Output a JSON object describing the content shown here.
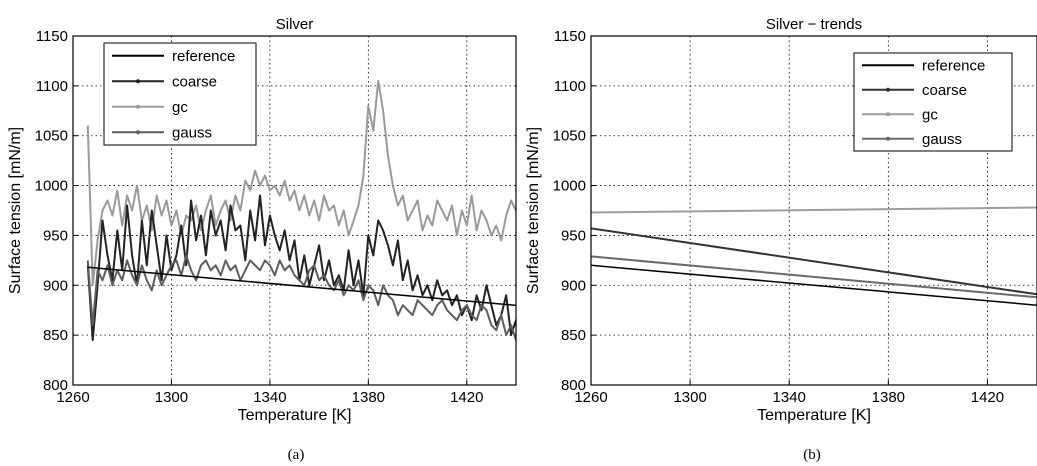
{
  "chart_data": [
    {
      "type": "line",
      "title": "Silver",
      "caption": "(a)",
      "xlabel": "Temperature [K]",
      "ylabel": "Surface tension [mN/m]",
      "xlim": [
        1260,
        1440
      ],
      "ylim": [
        800,
        1150
      ],
      "xticks": [
        1260,
        1300,
        1340,
        1380,
        1420
      ],
      "yticks": [
        800,
        850,
        900,
        950,
        1000,
        1050,
        1100,
        1150
      ],
      "grid": true,
      "legend_position": "top-left",
      "series": [
        {
          "name": "reference",
          "color": "#000000",
          "x": [
            1266,
            1444
          ],
          "y": [
            918,
            879
          ]
        },
        {
          "name": "coarse",
          "color": "#222222",
          "x": [
            1266,
            1268,
            1270,
            1272,
            1274,
            1276,
            1278,
            1280,
            1282,
            1284,
            1286,
            1288,
            1290,
            1292,
            1294,
            1296,
            1298,
            1300,
            1302,
            1304,
            1306,
            1308,
            1310,
            1312,
            1314,
            1316,
            1318,
            1320,
            1322,
            1324,
            1326,
            1328,
            1330,
            1332,
            1334,
            1336,
            1338,
            1340,
            1342,
            1344,
            1346,
            1348,
            1350,
            1352,
            1354,
            1356,
            1358,
            1360,
            1362,
            1364,
            1366,
            1368,
            1370,
            1372,
            1374,
            1376,
            1378,
            1380,
            1382,
            1384,
            1386,
            1388,
            1390,
            1392,
            1394,
            1396,
            1398,
            1400,
            1402,
            1404,
            1406,
            1408,
            1410,
            1412,
            1414,
            1416,
            1418,
            1420,
            1422,
            1424,
            1426,
            1428,
            1430,
            1432,
            1434,
            1436,
            1438,
            1440,
            1442,
            1444
          ],
          "y": [
            920,
            845,
            900,
            965,
            930,
            905,
            955,
            915,
            980,
            930,
            900,
            965,
            920,
            975,
            940,
            905,
            950,
            915,
            930,
            960,
            920,
            985,
            945,
            970,
            930,
            975,
            950,
            965,
            935,
            980,
            955,
            960,
            925,
            975,
            945,
            990,
            940,
            970,
            950,
            935,
            955,
            925,
            945,
            905,
            930,
            900,
            920,
            940,
            905,
            925,
            900,
            910,
            895,
            935,
            900,
            925,
            890,
            950,
            930,
            965,
            955,
            940,
            920,
            945,
            905,
            925,
            895,
            910,
            890,
            900,
            885,
            905,
            890,
            895,
            880,
            890,
            870,
            880,
            865,
            890,
            875,
            900,
            880,
            860,
            870,
            890,
            850,
            865,
            845,
            850
          ]
        },
        {
          "name": "gc",
          "color": "#9a9a9a",
          "x": [
            1266,
            1268,
            1270,
            1272,
            1274,
            1276,
            1278,
            1280,
            1282,
            1284,
            1286,
            1288,
            1290,
            1292,
            1294,
            1296,
            1298,
            1300,
            1302,
            1304,
            1306,
            1308,
            1310,
            1312,
            1314,
            1316,
            1318,
            1320,
            1322,
            1324,
            1326,
            1328,
            1330,
            1332,
            1334,
            1336,
            1338,
            1340,
            1342,
            1344,
            1346,
            1348,
            1350,
            1352,
            1354,
            1356,
            1358,
            1360,
            1362,
            1364,
            1366,
            1368,
            1370,
            1372,
            1374,
            1376,
            1378,
            1380,
            1382,
            1384,
            1386,
            1388,
            1390,
            1392,
            1394,
            1396,
            1398,
            1400,
            1402,
            1404,
            1406,
            1408,
            1410,
            1412,
            1414,
            1416,
            1418,
            1420,
            1422,
            1424,
            1426,
            1428,
            1430,
            1432,
            1434,
            1436,
            1438,
            1440,
            1442,
            1444
          ],
          "y": [
            1060,
            900,
            945,
            975,
            985,
            970,
            995,
            960,
            990,
            975,
            1000,
            965,
            980,
            955,
            990,
            970,
            985,
            960,
            975,
            950,
            970,
            965,
            980,
            955,
            975,
            990,
            960,
            975,
            985,
            965,
            990,
            975,
            1005,
            995,
            1015,
            1000,
            1010,
            995,
            1000,
            990,
            1005,
            985,
            995,
            975,
            990,
            970,
            985,
            965,
            990,
            975,
            980,
            960,
            975,
            950,
            965,
            980,
            1010,
            1080,
            1055,
            1105,
            1075,
            1030,
            1000,
            980,
            990,
            965,
            975,
            985,
            955,
            970,
            960,
            985,
            975,
            965,
            980,
            950,
            975,
            960,
            990,
            955,
            975,
            965,
            950,
            960,
            945,
            970,
            985,
            975,
            960,
            950
          ]
        },
        {
          "name": "gauss",
          "color": "#5e5e5e",
          "x": [
            1266,
            1268,
            1270,
            1272,
            1274,
            1276,
            1278,
            1280,
            1282,
            1284,
            1286,
            1288,
            1290,
            1292,
            1294,
            1296,
            1298,
            1300,
            1302,
            1304,
            1306,
            1308,
            1310,
            1312,
            1314,
            1316,
            1318,
            1320,
            1322,
            1324,
            1326,
            1328,
            1330,
            1332,
            1334,
            1336,
            1338,
            1340,
            1342,
            1344,
            1346,
            1348,
            1350,
            1352,
            1354,
            1356,
            1358,
            1360,
            1362,
            1364,
            1366,
            1368,
            1370,
            1372,
            1374,
            1376,
            1378,
            1380,
            1382,
            1384,
            1386,
            1388,
            1390,
            1392,
            1394,
            1396,
            1398,
            1400,
            1402,
            1404,
            1406,
            1408,
            1410,
            1412,
            1414,
            1416,
            1418,
            1420,
            1422,
            1424,
            1426,
            1428,
            1430,
            1432,
            1434,
            1436,
            1438,
            1440,
            1442,
            1444
          ],
          "y": [
            925,
            860,
            915,
            905,
            920,
            900,
            915,
            905,
            925,
            910,
            900,
            920,
            905,
            895,
            915,
            900,
            910,
            920,
            925,
            910,
            930,
            915,
            905,
            920,
            925,
            915,
            920,
            910,
            925,
            915,
            920,
            905,
            915,
            925,
            920,
            915,
            925,
            920,
            910,
            925,
            915,
            920,
            910,
            905,
            900,
            915,
            920,
            905,
            910,
            900,
            895,
            905,
            890,
            900,
            895,
            905,
            885,
            900,
            895,
            880,
            900,
            890,
            885,
            870,
            880,
            875,
            870,
            885,
            880,
            875,
            870,
            880,
            885,
            875,
            870,
            865,
            875,
            880,
            870,
            865,
            880,
            875,
            860,
            855,
            870,
            850,
            860,
            845,
            855,
            850
          ]
        }
      ]
    },
    {
      "type": "line",
      "title": "Silver − trends",
      "caption": "(b)",
      "xlabel": "Temperature [K]",
      "ylabel": "Surface tension [mN/m]",
      "xlim": [
        1260,
        1440
      ],
      "ylim": [
        800,
        1150
      ],
      "xticks": [
        1260,
        1300,
        1340,
        1380,
        1420
      ],
      "yticks": [
        800,
        850,
        900,
        950,
        1000,
        1050,
        1100,
        1150
      ],
      "grid": true,
      "legend_position": "top-right",
      "series": [
        {
          "name": "reference",
          "color": "#000000",
          "x": [
            1260,
            1440
          ],
          "y": [
            920,
            880
          ]
        },
        {
          "name": "coarse",
          "color": "#333333",
          "x": [
            1260,
            1440
          ],
          "y": [
            957,
            891
          ]
        },
        {
          "name": "gc",
          "color": "#9e9e9e",
          "x": [
            1260,
            1440
          ],
          "y": [
            973,
            978
          ]
        },
        {
          "name": "gauss",
          "color": "#6a6a6a",
          "x": [
            1260,
            1440
          ],
          "y": [
            929,
            888
          ]
        }
      ]
    }
  ]
}
